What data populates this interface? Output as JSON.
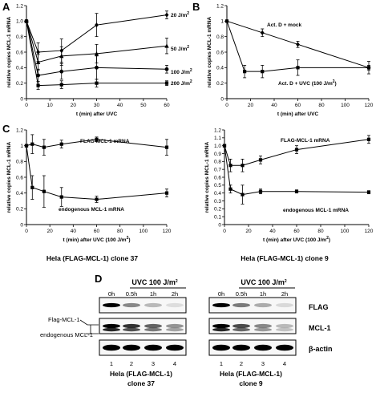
{
  "panel_labels": {
    "A": "A",
    "B": "B",
    "C": "C",
    "D": "D"
  },
  "chart_data": [
    {
      "panel": "A",
      "type": "line",
      "ylabel": "relative copies MCL-1 mRNA",
      "xlabel": "t (min) after UVC",
      "xlim": [
        0,
        60
      ],
      "ylim": [
        0,
        1.2
      ],
      "xticks": [
        0,
        10,
        20,
        30,
        40,
        50,
        60
      ],
      "yticks": [
        0,
        0.2,
        0.4,
        0.6,
        0.8,
        1.0,
        1.2
      ],
      "ytick_labels": [
        "0",
        "0.2",
        "0.4",
        "0.6",
        "0.8",
        "1.0",
        "1.2"
      ],
      "x": [
        0,
        5,
        15,
        30,
        60
      ],
      "series": [
        {
          "name": "20 J/m2",
          "label_main": "20 J/m",
          "label_sup": "2",
          "marker": "diamond",
          "values": [
            1.0,
            0.6,
            0.62,
            0.95,
            1.08
          ],
          "err": [
            0,
            0.12,
            0.15,
            0.15,
            0.05
          ]
        },
        {
          "name": "50 J/m2",
          "label_main": "50 J/m",
          "label_sup": "2",
          "marker": "triangle",
          "values": [
            1.0,
            0.47,
            0.55,
            0.58,
            0.68
          ],
          "err": [
            0,
            0.1,
            0.12,
            0.12,
            0.1
          ]
        },
        {
          "name": "100 J/m2",
          "label_main": "100 J/m",
          "label_sup": "2",
          "marker": "circle",
          "values": [
            1.0,
            0.3,
            0.35,
            0.4,
            0.38
          ],
          "err": [
            0,
            0.08,
            0.1,
            0.15,
            0.05
          ]
        },
        {
          "name": "200 J/m2",
          "label_main": "200 J/m",
          "label_sup": "2",
          "marker": "square",
          "values": [
            1.0,
            0.17,
            0.18,
            0.2,
            0.2
          ],
          "err": [
            0,
            0.05,
            0.05,
            0.05,
            0.03
          ]
        }
      ]
    },
    {
      "panel": "B",
      "type": "line",
      "ylabel": "relative copies MCL-1 mRNA",
      "xlabel": "t (min) after UVC",
      "xlim": [
        0,
        120
      ],
      "ylim": [
        0,
        1.2
      ],
      "xticks": [
        0,
        20,
        40,
        60,
        80,
        100,
        120
      ],
      "yticks": [
        0,
        0.2,
        0.4,
        0.6,
        0.8,
        1.0,
        1.2
      ],
      "ytick_labels": [
        "0",
        "0.2",
        "0.4",
        "0.6",
        "0.8",
        "1",
        "1.2"
      ],
      "series": [
        {
          "name": "Act. D + mock",
          "label_main": "Act. D + mock",
          "label_sup": "",
          "marker": "diamond",
          "x": [
            0,
            30,
            60,
            120
          ],
          "values": [
            1.0,
            0.85,
            0.7,
            0.4
          ],
          "err": [
            0,
            0.05,
            0.04,
            0.03
          ]
        },
        {
          "name": "Act. D + UVC (100 J/m2)",
          "label_main": "Act. D + UVC (100 J/m",
          "label_sup": "2",
          "label_end": ")",
          "marker": "square",
          "x": [
            0,
            15,
            30,
            60,
            120
          ],
          "values": [
            1.0,
            0.35,
            0.35,
            0.4,
            0.4
          ],
          "err": [
            0,
            0.08,
            0.08,
            0.1,
            0.08
          ]
        }
      ]
    },
    {
      "panel": "C-left",
      "type": "line",
      "ylabel": "relative copies MCL-1 mRNA",
      "xlabel": "t (min) after UVC (100 J/m2)",
      "xlabel_main": "t (min) after UVC (100 J/m",
      "xlabel_sup": "2",
      "xlabel_end": ")",
      "xlim": [
        0,
        120
      ],
      "ylim": [
        0,
        1.2
      ],
      "xticks": [
        0,
        20,
        40,
        60,
        80,
        100,
        120
      ],
      "yticks": [
        0,
        0.2,
        0.4,
        0.6,
        0.8,
        1.0,
        1.2
      ],
      "ytick_labels": [
        "0",
        "0.2",
        "0.4",
        "0.6",
        "0.8",
        "1",
        "1.2"
      ],
      "x": [
        0,
        5,
        15,
        30,
        60,
        120
      ],
      "series": [
        {
          "name": "FLAG-MCL-1 mRNA",
          "marker": "square",
          "values": [
            1.0,
            1.02,
            0.98,
            1.02,
            1.08,
            0.98
          ],
          "err": [
            0,
            0.12,
            0.1,
            0.05,
            0.03,
            0.1
          ]
        },
        {
          "name": "endogenous MCL-1 mRNA",
          "marker": "square",
          "values": [
            1.0,
            0.47,
            0.42,
            0.35,
            0.32,
            0.4
          ],
          "err": [
            0,
            0.15,
            0.2,
            0.12,
            0.04,
            0.05
          ]
        }
      ],
      "caption": "Hela (FLAG-MCL-1) clone 37"
    },
    {
      "panel": "C-right",
      "type": "line",
      "ylabel": "relative copies MCL-1 mRNA",
      "xlabel": "t (min) after UVC (100 J/m2)",
      "xlabel_main": "t (min) after UVC (100 J/m",
      "xlabel_sup": "2",
      "xlabel_end": ")",
      "xlim": [
        0,
        120
      ],
      "ylim": [
        0,
        1.2
      ],
      "xticks": [
        0,
        20,
        40,
        60,
        80,
        100,
        120
      ],
      "yticks": [
        0,
        0.1,
        0.2,
        0.3,
        0.4,
        0.5,
        0.6,
        0.7,
        0.8,
        0.9,
        1.0,
        1.1,
        1.2
      ],
      "ytick_labels": [
        "0",
        "0.1",
        "0.2",
        "0.3",
        "0.4",
        "0.5",
        "0.6",
        "0.7",
        "0.8",
        "0.9",
        "1.0",
        "1.1",
        "1.2"
      ],
      "x": [
        0,
        5,
        15,
        30,
        60,
        120
      ],
      "series": [
        {
          "name": "FLAG-MCL-1 mRNA",
          "marker": "square",
          "values": [
            1.0,
            0.75,
            0.75,
            0.82,
            0.95,
            1.08
          ],
          "err": [
            0,
            0.08,
            0.08,
            0.05,
            0.05,
            0.05
          ]
        },
        {
          "name": "endogenous MCL-1 mRNA",
          "marker": "square",
          "values": [
            1.0,
            0.45,
            0.38,
            0.42,
            0.42,
            0.41
          ],
          "err": [
            0,
            0.05,
            0.12,
            0.03,
            0.02,
            0.02
          ]
        }
      ],
      "caption": "Hela (FLAG-MCL-1) clone 9"
    }
  ],
  "western": {
    "treatment_main": "UVC 100 J/m",
    "treatment_sup": "2",
    "timepoints": [
      "0h",
      "0.5h",
      "1h",
      "2h"
    ],
    "lanes": [
      "1",
      "2",
      "3",
      "4"
    ],
    "blot_labels": [
      "FLAG",
      "MCL-1",
      "β-actin"
    ],
    "side_labels": [
      "Flag-MCL-1",
      "endogenous MCL-1"
    ],
    "left_caption": [
      "Hela (FLAG-MCL-1)",
      "clone 37"
    ],
    "right_caption": [
      "Hela (FLAG-MCL-1)",
      "clone 9"
    ],
    "left_bands": [
      [
        1.0,
        0.45,
        0.25,
        0.1
      ],
      [
        1.0,
        0.8,
        0.6,
        0.4
      ],
      [
        1.0,
        1.0,
        1.0,
        1.0
      ]
    ],
    "right_bands": [
      [
        1.0,
        0.5,
        0.3,
        0.12
      ],
      [
        1.0,
        0.7,
        0.45,
        0.25
      ],
      [
        1.0,
        1.0,
        1.0,
        1.0
      ]
    ]
  }
}
